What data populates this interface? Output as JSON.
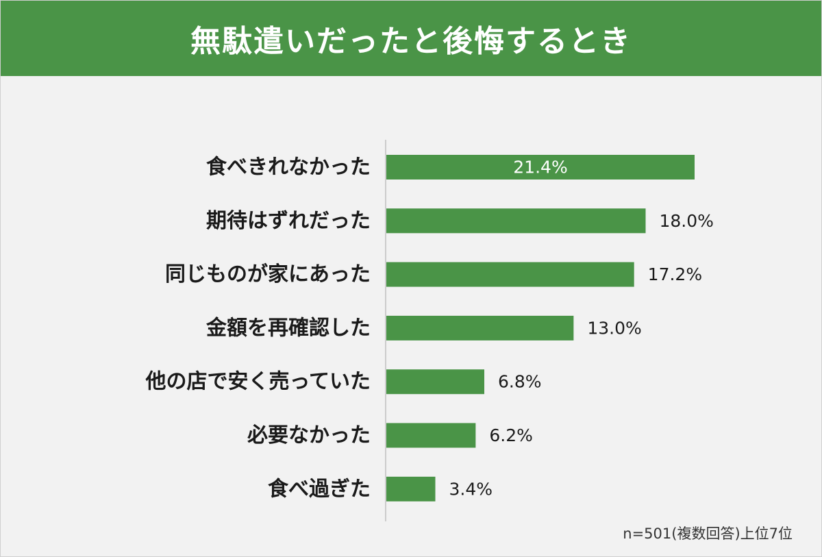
{
  "title": "無駄遣いだったと後悔するとき",
  "note": "n=501(複数回答)上位7位",
  "colors": {
    "header": "#4a9447",
    "bar": "#4a9447",
    "background": "#f2f2f2",
    "axis": "#bfbfbf"
  },
  "chart_data": {
    "type": "bar",
    "orientation": "horizontal",
    "categories": [
      "食べきれなかった",
      "期待はずれだった",
      "同じものが家にあった",
      "金額を再確認した",
      "他の店で安く売っていた",
      "必要なかった",
      "食べ過ぎた"
    ],
    "values": [
      21.4,
      18.0,
      17.2,
      13.0,
      6.8,
      6.2,
      3.4
    ],
    "value_labels": [
      "21.4%",
      "18.0%",
      "17.2%",
      "13.0%",
      "6.8%",
      "6.2%",
      "3.4%"
    ],
    "title": "無駄遣いだったと後悔するとき",
    "xlabel": "",
    "ylabel": "",
    "unit": "%",
    "grid": false,
    "legend": "none"
  }
}
